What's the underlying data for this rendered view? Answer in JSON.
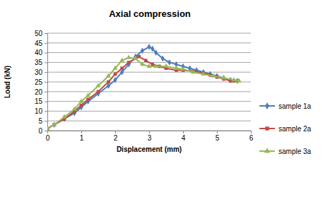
{
  "chart_data": {
    "type": "line",
    "title": "Axial compression",
    "x_label": "Displacement (mm)",
    "y_label": "Load (kN)",
    "xlim": [
      0,
      6
    ],
    "xticks": [
      0,
      1,
      2,
      3,
      4,
      5,
      6
    ],
    "ylim": [
      0,
      50
    ],
    "yticks": [
      0,
      5,
      10,
      15,
      20,
      25,
      30,
      35,
      40,
      45,
      50
    ],
    "grid": true,
    "legend": "right",
    "series": [
      {
        "name": "sample 1a",
        "color": "#4a7ebb",
        "marker": "diamond",
        "x": [
          0,
          0.2,
          0.5,
          0.8,
          1.0,
          1.2,
          1.5,
          1.8,
          2.0,
          2.2,
          2.4,
          2.6,
          2.8,
          3.0,
          3.1,
          3.2,
          3.4,
          3.6,
          3.8,
          4.0,
          4.2,
          4.4,
          4.6,
          4.8,
          5.0,
          5.2,
          5.4,
          5.6
        ],
        "values": [
          1,
          3,
          6,
          9,
          12,
          15,
          19,
          23,
          26,
          30,
          34,
          38,
          41,
          43,
          42,
          40,
          37,
          35,
          34,
          33,
          32,
          31,
          30,
          29,
          28,
          27,
          26,
          25.5
        ]
      },
      {
        "name": "sample 2a",
        "color": "#be4b48",
        "marker": "square",
        "x": [
          0,
          0.2,
          0.5,
          0.8,
          1.0,
          1.2,
          1.5,
          1.8,
          2.0,
          2.2,
          2.4,
          2.6,
          2.7,
          2.9,
          3.1,
          3.3,
          3.5,
          3.8,
          4.0,
          4.3,
          4.6,
          4.8,
          5.0,
          5.2,
          5.4,
          5.5
        ],
        "values": [
          1,
          3,
          6,
          10,
          13,
          16,
          20,
          25,
          29,
          32,
          35,
          37,
          38,
          36,
          34,
          33,
          32,
          31,
          31,
          30.5,
          29.5,
          28.5,
          27.5,
          26.5,
          25.5,
          25.5
        ]
      },
      {
        "name": "sample 3a",
        "color": "#98b954",
        "marker": "triangle",
        "x": [
          0,
          0.2,
          0.5,
          0.8,
          1.0,
          1.2,
          1.5,
          1.8,
          2.0,
          2.2,
          2.4,
          2.6,
          2.8,
          3.0,
          3.2,
          3.5,
          3.8,
          4.0,
          4.3,
          4.6,
          4.9,
          5.2,
          5.5,
          5.65
        ],
        "values": [
          1,
          3,
          7,
          11,
          15,
          18,
          23,
          28,
          32,
          36,
          37.5,
          37,
          34,
          33,
          33,
          33,
          32,
          31.5,
          30,
          29,
          28,
          27,
          26,
          25.5
        ]
      }
    ]
  }
}
